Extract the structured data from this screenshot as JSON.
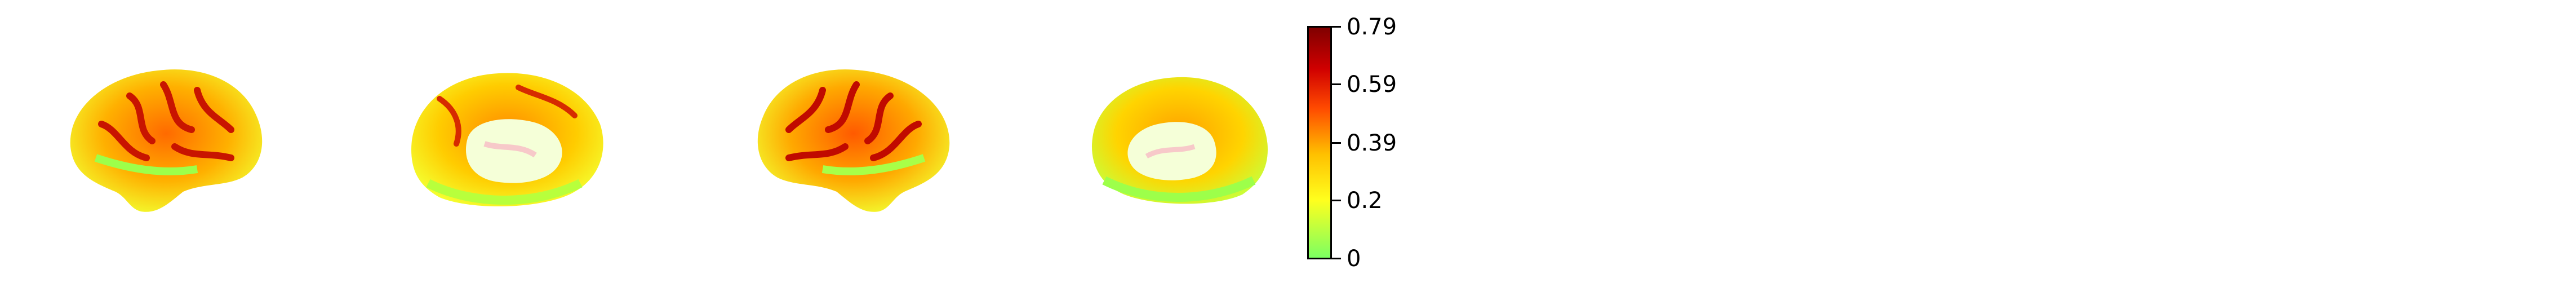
{
  "views": [
    {
      "name": "left-lateral"
    },
    {
      "name": "left-medial"
    },
    {
      "name": "right-lateral"
    },
    {
      "name": "right-medial"
    }
  ],
  "colorbar": {
    "colors": [
      "#7cff62",
      "#ffff1e",
      "#ffc000",
      "#ff4a00",
      "#d00000",
      "#800000"
    ],
    "ticks": [
      "0.79",
      "0.59",
      "0.39",
      "0.2",
      "0"
    ]
  }
}
